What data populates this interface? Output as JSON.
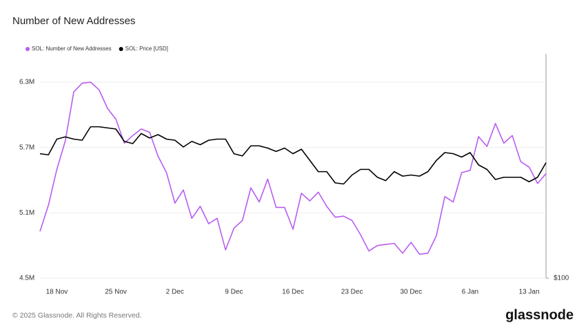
{
  "chart_data": {
    "type": "line",
    "title": "Number of New Addresses",
    "categories": [
      null,
      null,
      "18 Nov",
      null,
      null,
      null,
      null,
      null,
      null,
      "25 Nov",
      null,
      null,
      null,
      null,
      null,
      null,
      "2 Dec",
      null,
      null,
      null,
      null,
      null,
      null,
      "9 Dec",
      null,
      null,
      null,
      null,
      null,
      null,
      "16 Dec",
      null,
      null,
      null,
      null,
      null,
      null,
      "23 Dec",
      null,
      null,
      null,
      null,
      null,
      null,
      "30 Dec",
      null,
      null,
      null,
      null,
      null,
      null,
      "6 Jan",
      null,
      null,
      null,
      null,
      null,
      null,
      "13 Jan",
      null,
      null
    ],
    "series": [
      {
        "name": "SOL: Number of New Addresses",
        "color": "#b85cf0",
        "values": [
          4930000,
          5170000,
          5500000,
          5760000,
          6210000,
          6290000,
          6300000,
          6230000,
          6060000,
          5960000,
          5740000,
          5810000,
          5870000,
          5840000,
          5620000,
          5470000,
          5190000,
          5310000,
          5050000,
          5160000,
          5000000,
          5050000,
          4760000,
          4960000,
          5030000,
          5330000,
          5200000,
          5410000,
          5150000,
          5150000,
          4950000,
          5280000,
          5210000,
          5290000,
          5160000,
          5060000,
          5070000,
          5030000,
          4900000,
          4750000,
          4800000,
          4810000,
          4820000,
          4730000,
          4830000,
          4720000,
          4730000,
          4890000,
          5250000,
          5200000,
          5470000,
          5490000,
          5800000,
          5710000,
          5920000,
          5740000,
          5810000,
          5570000,
          5520000,
          5370000,
          5460000
        ]
      },
      {
        "name": "SOL: Price [USD]",
        "color": "#000000",
        "axis": "y2",
        "values": [
          211,
          210,
          224,
          226,
          224,
          223,
          235,
          235,
          234,
          233,
          222,
          220,
          229,
          225,
          228,
          224,
          223,
          217,
          222,
          219,
          223,
          224,
          224,
          211,
          209,
          218,
          218,
          216,
          213,
          216,
          211,
          215,
          205,
          195,
          195,
          185,
          184,
          192,
          197,
          197,
          190,
          187,
          195,
          191,
          192,
          191,
          195,
          205,
          212,
          211,
          208,
          212,
          201,
          197,
          188,
          190,
          190,
          190,
          186,
          190,
          203
        ]
      }
    ],
    "ylim": [
      4500000,
      6560000
    ],
    "yticks": [
      {
        "value": 4500000,
        "label": "4.5M"
      },
      {
        "value": 5100000,
        "label": "5.1M"
      },
      {
        "value": 5700000,
        "label": "5.7M"
      },
      {
        "value": 6300000,
        "label": "6.3M"
      }
    ],
    "y2lim": [
      100,
      300
    ],
    "y2ticks": [
      {
        "value": 100,
        "label": "$100"
      }
    ],
    "grid": true,
    "legend": "top-left",
    "footer": "© 2025 Glassnode. All Rights Reserved.",
    "brand": "glassnode"
  }
}
